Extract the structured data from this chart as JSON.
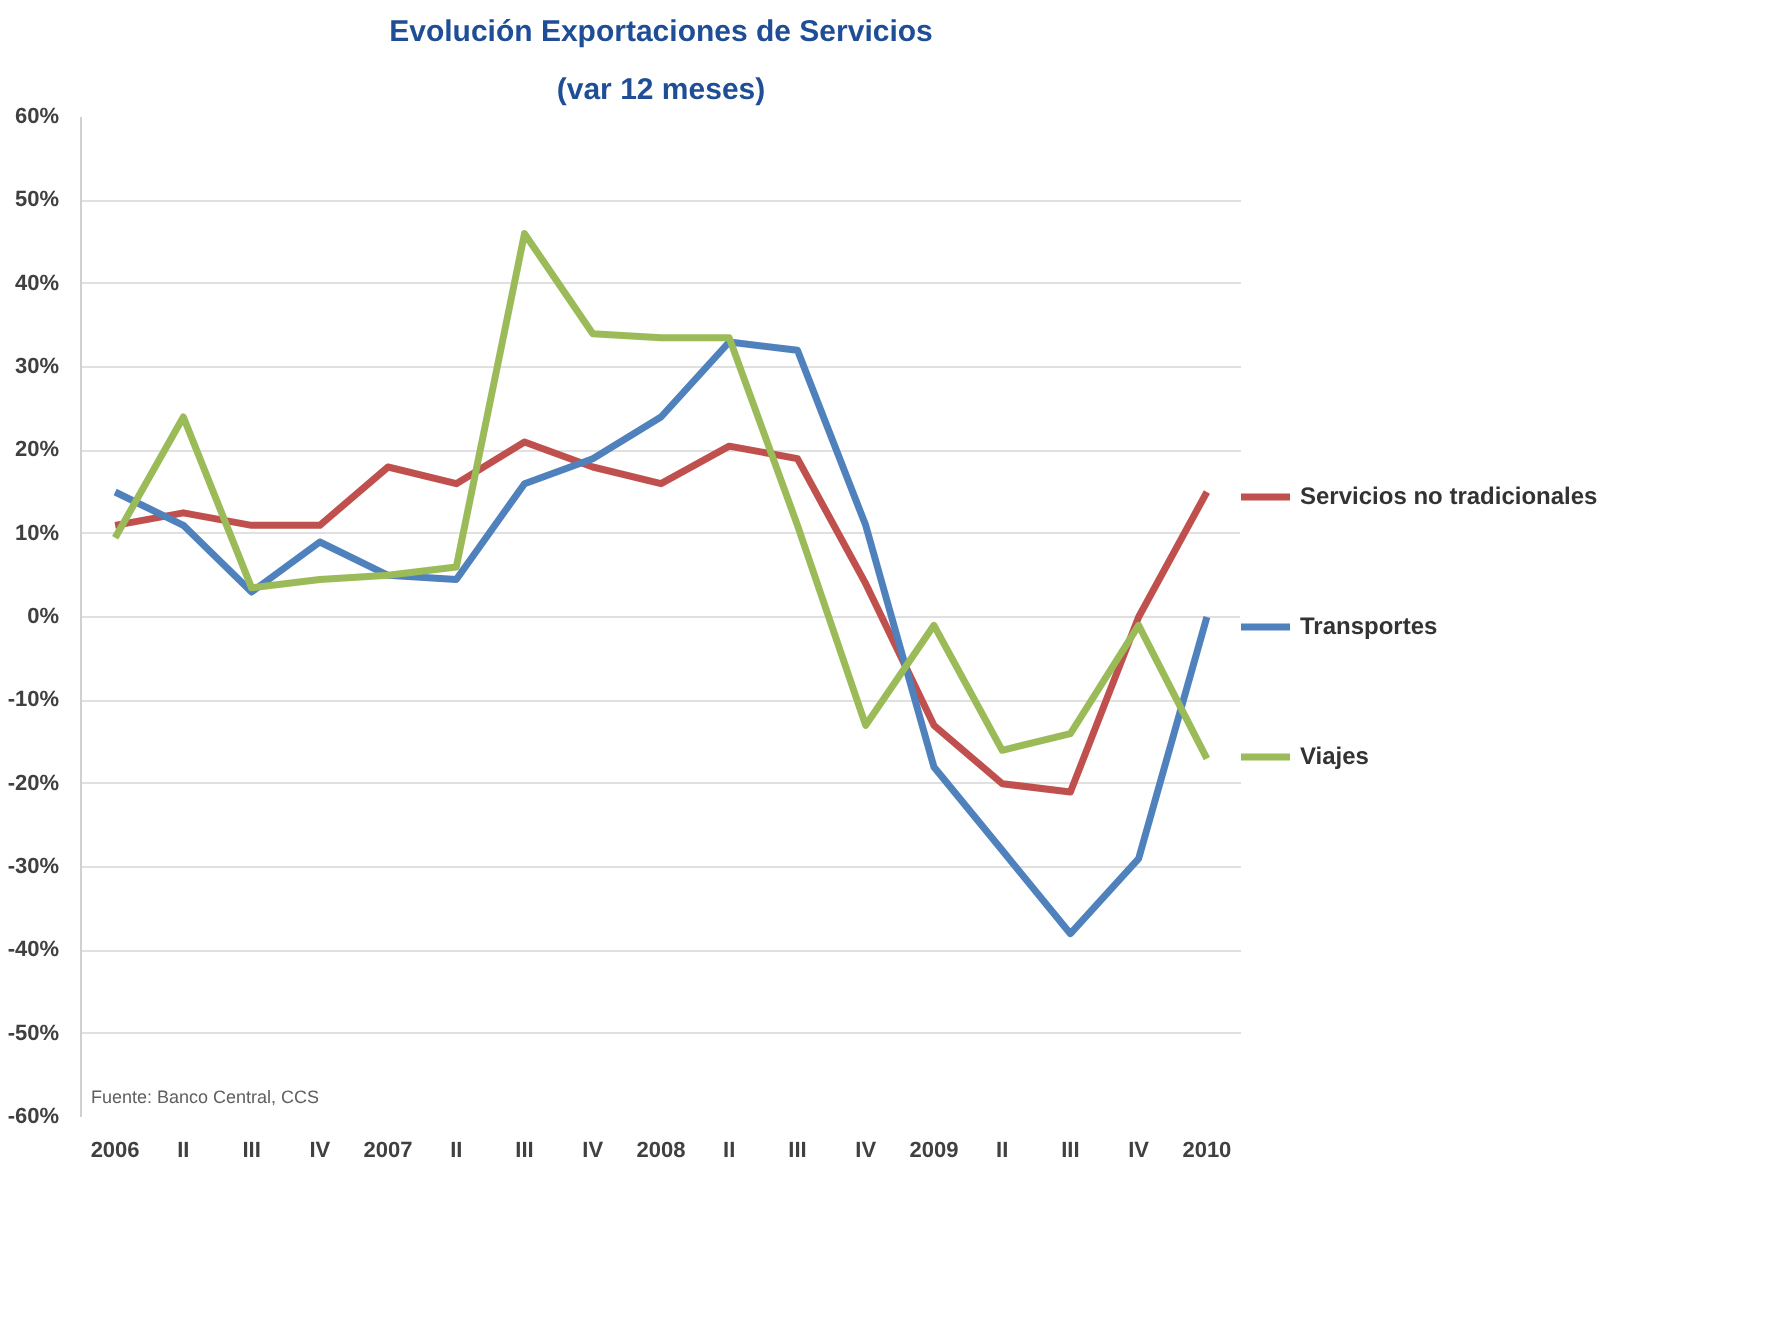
{
  "chart_data": {
    "type": "line",
    "title": "Evolución Exportaciones de Servicios",
    "subtitle": "(var 12 meses)",
    "categories": [
      "2006",
      "II",
      "III",
      "IV",
      "2007",
      "II",
      "III",
      "IV",
      "2008",
      "II",
      "III",
      "IV",
      "2009",
      "II",
      "III",
      "IV",
      "2010"
    ],
    "series": [
      {
        "name": "Servicios no tradicionales",
        "color": "#c0504d",
        "values": [
          11,
          12.5,
          11,
          11,
          18,
          16,
          21,
          18,
          16,
          20.5,
          19,
          4,
          -13,
          -20,
          -21,
          0,
          15
        ]
      },
      {
        "name": "Transportes",
        "color": "#4f81bd",
        "values": [
          15,
          11,
          3,
          9,
          5,
          4.5,
          16,
          19,
          24,
          33,
          32,
          11,
          -18,
          -28,
          -38,
          -29,
          0
        ]
      },
      {
        "name": "Viajes",
        "color": "#9bbb59",
        "values": [
          9.5,
          24,
          3.5,
          4.5,
          5,
          6,
          46,
          34,
          33.5,
          33.5,
          11,
          -13,
          -1,
          -16,
          -14,
          -1,
          -17
        ]
      }
    ],
    "ylim": [
      -60,
      60
    ],
    "yticks": [
      {
        "value": -60,
        "label": "-60%"
      },
      {
        "value": -50,
        "label": "-50%"
      },
      {
        "value": -40,
        "label": "-40%"
      },
      {
        "value": -30,
        "label": "-30%"
      },
      {
        "value": -20,
        "label": "-20%"
      },
      {
        "value": -10,
        "label": "-10%"
      },
      {
        "value": 0,
        "label": "0%"
      },
      {
        "value": 10,
        "label": "10%"
      },
      {
        "value": 20,
        "label": "20%"
      },
      {
        "value": 30,
        "label": "30%"
      },
      {
        "value": 40,
        "label": "40%"
      },
      {
        "value": 50,
        "label": "50%"
      },
      {
        "value": 60,
        "label": "60%"
      }
    ],
    "grid": "y",
    "legend": "right",
    "marker": "none",
    "line_style": "solid",
    "annotations": [
      "Fuente: Banco Central, CCS"
    ]
  }
}
